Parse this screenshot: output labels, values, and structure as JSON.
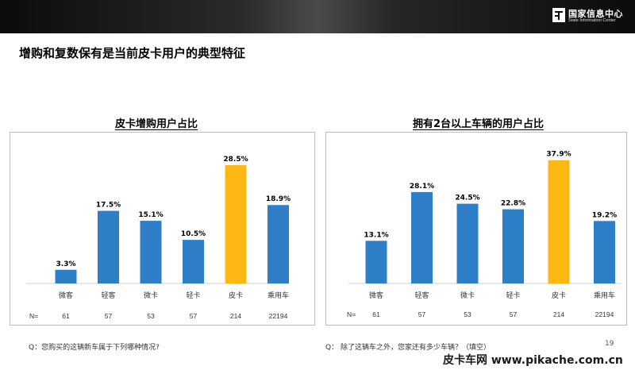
{
  "header": {
    "logo_cn": "国家信息中心",
    "logo_en": "State Information Center"
  },
  "page_title": "增购和复数保有是当前皮卡用户的典型特征",
  "colors": {
    "blue": "#2e7fc8",
    "highlight": "#fdb813",
    "grid": "#cfcfcf"
  },
  "chart_data": [
    {
      "type": "bar",
      "title": "皮卡增购用户占比",
      "categories": [
        "微客",
        "轻客",
        "微卡",
        "轻卡",
        "皮卡",
        "乘用车"
      ],
      "values": [
        3.3,
        17.5,
        15.1,
        10.5,
        28.5,
        18.9
      ],
      "value_labels": [
        "3.3%",
        "17.5%",
        "15.1%",
        "10.5%",
        "28.5%",
        "18.9%"
      ],
      "highlight_index": 4,
      "n_label": "N=",
      "n_values": [
        "61",
        "57",
        "53",
        "57",
        "214",
        "22194"
      ],
      "ylim": [
        0,
        31
      ],
      "footnote": "Q：您购买的这辆新车属于下列哪种情况?"
    },
    {
      "type": "bar",
      "title": "拥有2台以上车辆的用户占比",
      "categories": [
        "微客",
        "轻客",
        "微卡",
        "轻卡",
        "皮卡",
        "乘用车"
      ],
      "values": [
        13.1,
        28.1,
        24.5,
        22.8,
        37.9,
        19.2
      ],
      "value_labels": [
        "13.1%",
        "28.1%",
        "24.5%",
        "22.8%",
        "37.9%",
        "19.2%"
      ],
      "highlight_index": 4,
      "n_label": "N=",
      "n_values": [
        "61",
        "57",
        "53",
        "57",
        "214",
        "22194"
      ],
      "ylim": [
        0,
        41
      ],
      "footnote": "Q：   除了这辆车之外，您家还有多少车辆？（填空）"
    }
  ],
  "page_number": "19",
  "watermark": "皮卡车网  www.pikache.com.cn"
}
